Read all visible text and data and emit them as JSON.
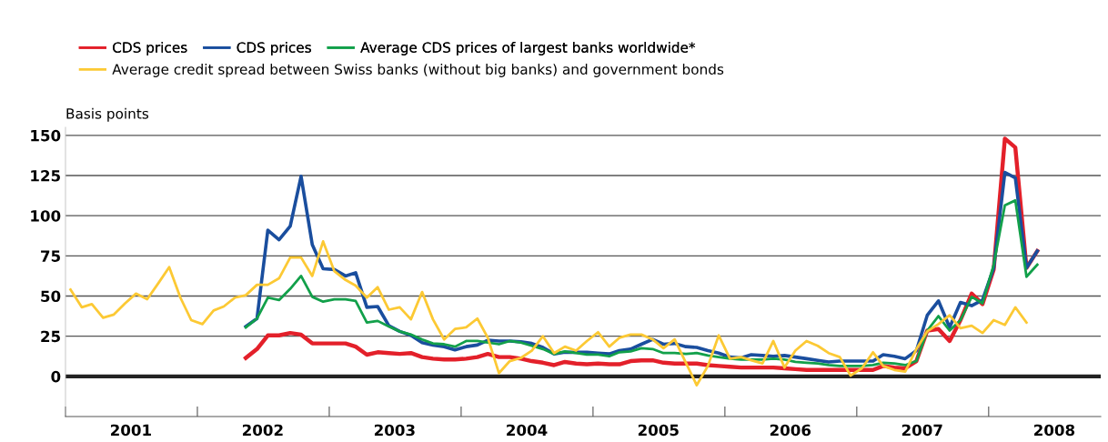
{
  "chart_data": {
    "type": "line",
    "ylabel": "Basis points",
    "x": [
      "2001-01-15",
      "2001-02-15",
      "2001-03-15",
      "2001-04-15",
      "2001-05-15",
      "2001-06-15",
      "2001-07-15",
      "2001-08-15",
      "2001-09-15",
      "2001-10-15",
      "2001-11-15",
      "2001-12-15",
      "2002-01-15",
      "2002-02-15",
      "2002-03-15",
      "2002-04-15",
      "2002-05-15",
      "2002-06-15",
      "2002-07-15",
      "2002-08-15",
      "2002-09-15",
      "2002-10-15",
      "2002-11-15",
      "2002-12-15",
      "2003-01-15",
      "2003-02-15",
      "2003-03-15",
      "2003-04-15",
      "2003-05-15",
      "2003-06-15",
      "2003-07-15",
      "2003-08-15",
      "2003-09-15",
      "2003-10-15",
      "2003-11-15",
      "2003-12-15",
      "2004-01-15",
      "2004-02-15",
      "2004-03-15",
      "2004-04-15",
      "2004-05-15",
      "2004-06-15",
      "2004-07-15",
      "2004-08-15",
      "2004-09-15",
      "2004-10-15",
      "2004-11-15",
      "2004-12-15",
      "2005-01-15",
      "2005-02-15",
      "2005-03-15",
      "2005-04-15",
      "2005-05-15",
      "2005-06-15",
      "2005-07-15",
      "2005-08-15",
      "2005-09-15",
      "2005-10-15",
      "2005-11-15",
      "2005-12-15",
      "2006-01-15",
      "2006-02-15",
      "2006-03-15",
      "2006-04-15",
      "2006-05-15",
      "2006-06-15",
      "2006-07-15",
      "2006-08-15",
      "2006-09-15",
      "2006-10-15",
      "2006-11-15",
      "2006-12-15",
      "2007-01-15",
      "2007-02-15",
      "2007-03-15",
      "2007-04-15",
      "2007-05-15",
      "2007-06-15",
      "2007-07-15",
      "2007-08-15",
      "2007-09-15",
      "2007-10-15",
      "2007-11-15",
      "2007-12-15",
      "2008-01-15",
      "2008-02-15",
      "2008-03-15",
      "2008-04-15",
      "2008-05-15"
    ],
    "series": [
      {
        "name": "CDS prices",
        "color": "#e3202a",
        "values": [
          null,
          null,
          null,
          null,
          null,
          null,
          null,
          null,
          null,
          null,
          null,
          null,
          null,
          null,
          null,
          null,
          11.5,
          17,
          25.5,
          25.5,
          27,
          26,
          20.5,
          20.5,
          20.5,
          20.5,
          18.5,
          13.5,
          15,
          14.5,
          14,
          14.5,
          12,
          11,
          10.5,
          10.5,
          11,
          12,
          14,
          12,
          12,
          11,
          9.5,
          8.5,
          7,
          9,
          8,
          7.5,
          8,
          7.5,
          7.5,
          9.5,
          10,
          10,
          8.5,
          8,
          8,
          8,
          7,
          6.5,
          6,
          5.5,
          5.5,
          5.5,
          5.5,
          5,
          4.5,
          4,
          4,
          4,
          4,
          4,
          4,
          4,
          6.5,
          5.5,
          5,
          9.5,
          28.5,
          29.5,
          22,
          35,
          51.5,
          45,
          66.5,
          148,
          142.5,
          67.5,
          78
        ]
      },
      {
        "name": "CDS prices",
        "color": "#1a4e9e",
        "values": [
          null,
          null,
          null,
          null,
          null,
          null,
          null,
          null,
          null,
          null,
          null,
          null,
          null,
          null,
          null,
          null,
          31,
          36,
          91,
          85,
          93.5,
          124.5,
          82,
          67,
          66.5,
          62.5,
          64.5,
          43,
          43.5,
          31.5,
          28,
          25.5,
          21,
          19.5,
          18.5,
          16.5,
          18.5,
          19.5,
          22.5,
          22,
          22,
          21.5,
          20.5,
          18,
          14,
          15,
          15,
          15,
          14.5,
          14,
          16,
          17,
          20,
          23,
          20,
          20.5,
          18.5,
          18,
          16,
          14.5,
          12,
          11.5,
          13.5,
          13,
          12.5,
          13,
          12,
          11,
          10,
          9,
          9.5,
          9.5,
          9.5,
          9.5,
          13.5,
          12.5,
          11,
          16,
          38,
          47,
          30.5,
          46,
          44,
          47.5,
          67.5,
          127,
          123.5,
          67.5,
          78
        ]
      },
      {
        "name": "Average CDS prices of largest banks worldwide*",
        "color": "#12a04a",
        "values": [
          null,
          null,
          null,
          null,
          null,
          null,
          null,
          null,
          null,
          null,
          null,
          null,
          null,
          null,
          null,
          null,
          30.5,
          36,
          49,
          47.5,
          54.5,
          62.5,
          49.5,
          46.5,
          48,
          48,
          47,
          33.5,
          34.5,
          31,
          28,
          26,
          23,
          20.5,
          20,
          18.5,
          22,
          22,
          21,
          20,
          22,
          21,
          19,
          17,
          14,
          15.5,
          14.5,
          13.5,
          13.5,
          12.5,
          15,
          15.5,
          17.5,
          17,
          14.5,
          14.5,
          14,
          14.5,
          13,
          12,
          11,
          10.5,
          10.5,
          10.5,
          11,
          10.5,
          9,
          8.5,
          8,
          7,
          6.5,
          6.5,
          6.5,
          7,
          8.5,
          8,
          7,
          9.5,
          28.5,
          37.5,
          28.5,
          35,
          49.5,
          45.5,
          69.5,
          106.5,
          109.5,
          62,
          69.5
        ]
      },
      {
        "name": "Average credit spread between Swiss banks (without big banks) and government bonds",
        "color": "#fcc934",
        "values": [
          54,
          43,
          45,
          36.5,
          38.5,
          45.5,
          51.5,
          48,
          58,
          68,
          49,
          35,
          32.5,
          41,
          43.5,
          49,
          50.5,
          57,
          57,
          61,
          74,
          74,
          62.5,
          84,
          65.5,
          60,
          56.5,
          49,
          55.5,
          41.5,
          43,
          35.5,
          52.5,
          35.5,
          23,
          29.5,
          30.5,
          36,
          24,
          2,
          9.5,
          11.5,
          16,
          25,
          14.5,
          18.5,
          16,
          22,
          27.5,
          18.5,
          24,
          26,
          26,
          23,
          17.5,
          23,
          8.5,
          -5.5,
          6.5,
          25.5,
          11,
          12,
          10,
          8,
          22,
          5.5,
          16,
          22,
          19,
          14.5,
          12,
          0.5,
          5,
          15,
          6.5,
          4,
          3,
          17,
          28,
          32.5,
          38,
          30,
          31.5,
          27,
          35,
          32,
          43,
          33.5,
          null
        ]
      }
    ],
    "ylim": [
      -25,
      155
    ],
    "yticks": [
      0,
      25,
      50,
      75,
      100,
      125,
      150
    ],
    "xlim": [
      "2001-01-01",
      "2008-11-07"
    ],
    "xticks": [
      {
        "value": "2001-01-01",
        "label": null
      },
      {
        "value": "2002-01-01",
        "label": null
      },
      {
        "value": "2003-01-01",
        "label": null
      },
      {
        "value": "2004-01-01",
        "label": null
      },
      {
        "value": "2005-01-01",
        "label": null
      },
      {
        "value": "2006-01-01",
        "label": null
      },
      {
        "value": "2007-01-01",
        "label": null
      },
      {
        "value": "2008-01-01",
        "label": null
      },
      {
        "value": "2001-07-01",
        "label": "2001"
      },
      {
        "value": "2002-07-01",
        "label": "2002"
      },
      {
        "value": "2003-07-01",
        "label": "2003"
      },
      {
        "value": "2004-07-01",
        "label": "2004"
      },
      {
        "value": "2005-07-01",
        "label": "2005"
      },
      {
        "value": "2006-07-01",
        "label": "2006"
      },
      {
        "value": "2007-07-01",
        "label": "2007"
      },
      {
        "value": "2008-07-01",
        "label": "2008"
      }
    ],
    "grid": "y",
    "legend": "top left",
    "line_style": "solid",
    "marker": "none"
  }
}
